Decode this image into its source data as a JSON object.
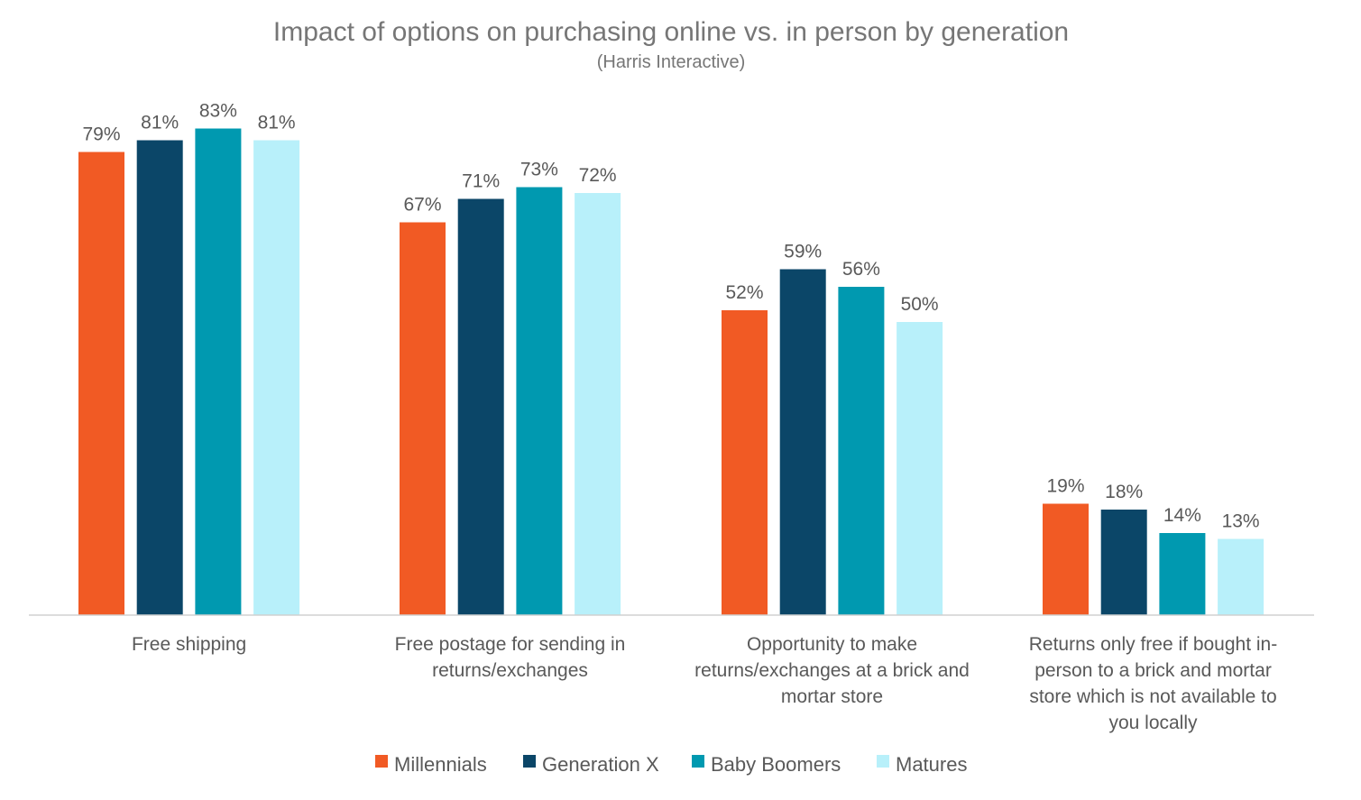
{
  "chart_data": {
    "type": "bar",
    "title": "Impact of options on purchasing online vs. in person by generation",
    "subtitle": "(Harris Interactive)",
    "categories": [
      [
        "Free shipping"
      ],
      [
        "Free postage for sending in",
        "returns/exchanges"
      ],
      [
        "Opportunity to make",
        "returns/exchanges at a brick and",
        "mortar store"
      ],
      [
        "Returns only free if bought in-",
        "person to a brick and mortar",
        "store which is not available to",
        "you locally"
      ]
    ],
    "series": [
      {
        "name": "Millennials",
        "color": "#F15A24",
        "values": [
          79,
          67,
          52,
          19
        ]
      },
      {
        "name": "Generation X",
        "color": "#0B4668",
        "values": [
          81,
          71,
          59,
          18
        ]
      },
      {
        "name": "Baby Boomers",
        "color": "#0099B0",
        "values": [
          83,
          73,
          56,
          14
        ]
      },
      {
        "name": "Matures",
        "color": "#B8F0FA",
        "values": [
          81,
          72,
          50,
          13
        ]
      }
    ],
    "value_suffix": "%",
    "ylim": [
      0,
      100
    ],
    "grid": false,
    "legend_position": "bottom"
  }
}
